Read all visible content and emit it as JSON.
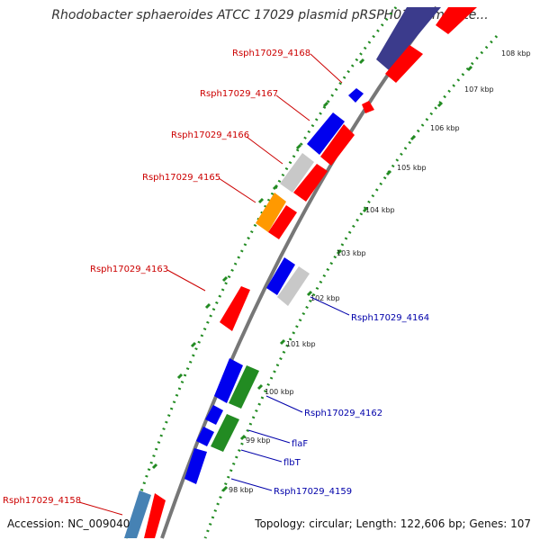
{
  "title": "Rhodobacter sphaeroides ATCC 17029 plasmid pRSPH01, complete...",
  "footer": {
    "accession": "Accession: NC_009040",
    "topology": "Topology: circular; Length: 122,606 bp; Genes: 107"
  },
  "colors": {
    "gene_red": "#ff0000",
    "gene_blue": "#0000ee",
    "gene_gray": "#c8c8c8",
    "gene_orange": "#ff9900",
    "gene_green": "#228b22",
    "gene_navy": "#3b3b8c",
    "gene_steel": "#4682b4",
    "backbone": "#777777",
    "ticks": "#228b22",
    "label_red": "#cc0000",
    "label_blue": "#0000aa"
  },
  "kbp_ticks": [
    "108 kbp",
    "107 kbp",
    "106 kbp",
    "105 kbp",
    "104 kbp",
    "103 kbp",
    "102 kbp",
    "101 kbp",
    "100 kbp",
    "99 kbp",
    "98 kbp"
  ],
  "gene_labels": {
    "left": [
      "Rsph17029_4168",
      "Rsph17029_4167",
      "Rsph17029_4166",
      "Rsph17029_4165",
      "Rsph17029_4163",
      "Rsph17029_4158"
    ],
    "right": [
      "Rsph17029_4164",
      "Rsph17029_4162",
      "flaF",
      "flbT",
      "Rsph17029_4159"
    ]
  }
}
